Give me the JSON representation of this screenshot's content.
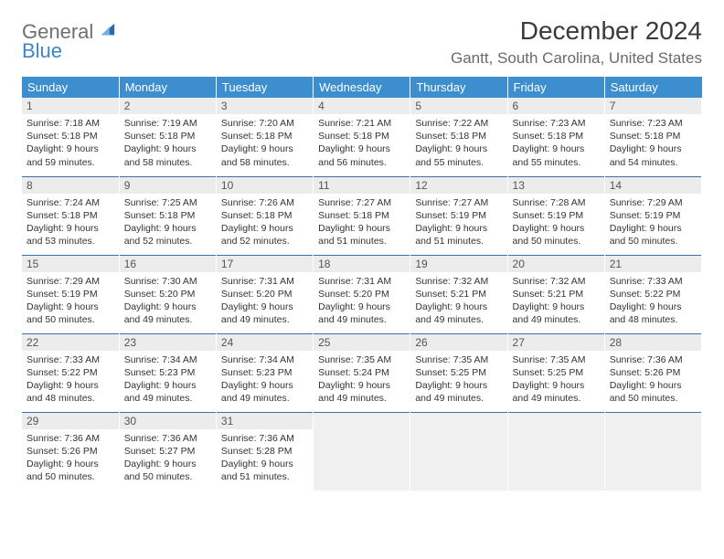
{
  "logo": {
    "word1": "General",
    "word2": "Blue"
  },
  "header": {
    "month_title": "December 2024",
    "location": "Gantt, South Carolina, United States"
  },
  "weekdays": [
    "Sunday",
    "Monday",
    "Tuesday",
    "Wednesday",
    "Thursday",
    "Friday",
    "Saturday"
  ],
  "colors": {
    "header_bg": "#3d8ecf",
    "header_text": "#ffffff",
    "daynum_bg": "#ececec",
    "row_border": "#3d72a7",
    "empty_bg": "#f0f0f0",
    "title_color": "#3a3a3a",
    "location_color": "#6a6a6a",
    "logo_gray": "#6f6f6f",
    "logo_blue": "#3a86c7"
  },
  "days": [
    {
      "n": "1",
      "sunrise": "Sunrise: 7:18 AM",
      "sunset": "Sunset: 5:18 PM",
      "day": "Daylight: 9 hours and 59 minutes."
    },
    {
      "n": "2",
      "sunrise": "Sunrise: 7:19 AM",
      "sunset": "Sunset: 5:18 PM",
      "day": "Daylight: 9 hours and 58 minutes."
    },
    {
      "n": "3",
      "sunrise": "Sunrise: 7:20 AM",
      "sunset": "Sunset: 5:18 PM",
      "day": "Daylight: 9 hours and 58 minutes."
    },
    {
      "n": "4",
      "sunrise": "Sunrise: 7:21 AM",
      "sunset": "Sunset: 5:18 PM",
      "day": "Daylight: 9 hours and 56 minutes."
    },
    {
      "n": "5",
      "sunrise": "Sunrise: 7:22 AM",
      "sunset": "Sunset: 5:18 PM",
      "day": "Daylight: 9 hours and 55 minutes."
    },
    {
      "n": "6",
      "sunrise": "Sunrise: 7:23 AM",
      "sunset": "Sunset: 5:18 PM",
      "day": "Daylight: 9 hours and 55 minutes."
    },
    {
      "n": "7",
      "sunrise": "Sunrise: 7:23 AM",
      "sunset": "Sunset: 5:18 PM",
      "day": "Daylight: 9 hours and 54 minutes."
    },
    {
      "n": "8",
      "sunrise": "Sunrise: 7:24 AM",
      "sunset": "Sunset: 5:18 PM",
      "day": "Daylight: 9 hours and 53 minutes."
    },
    {
      "n": "9",
      "sunrise": "Sunrise: 7:25 AM",
      "sunset": "Sunset: 5:18 PM",
      "day": "Daylight: 9 hours and 52 minutes."
    },
    {
      "n": "10",
      "sunrise": "Sunrise: 7:26 AM",
      "sunset": "Sunset: 5:18 PM",
      "day": "Daylight: 9 hours and 52 minutes."
    },
    {
      "n": "11",
      "sunrise": "Sunrise: 7:27 AM",
      "sunset": "Sunset: 5:18 PM",
      "day": "Daylight: 9 hours and 51 minutes."
    },
    {
      "n": "12",
      "sunrise": "Sunrise: 7:27 AM",
      "sunset": "Sunset: 5:19 PM",
      "day": "Daylight: 9 hours and 51 minutes."
    },
    {
      "n": "13",
      "sunrise": "Sunrise: 7:28 AM",
      "sunset": "Sunset: 5:19 PM",
      "day": "Daylight: 9 hours and 50 minutes."
    },
    {
      "n": "14",
      "sunrise": "Sunrise: 7:29 AM",
      "sunset": "Sunset: 5:19 PM",
      "day": "Daylight: 9 hours and 50 minutes."
    },
    {
      "n": "15",
      "sunrise": "Sunrise: 7:29 AM",
      "sunset": "Sunset: 5:19 PM",
      "day": "Daylight: 9 hours and 50 minutes."
    },
    {
      "n": "16",
      "sunrise": "Sunrise: 7:30 AM",
      "sunset": "Sunset: 5:20 PM",
      "day": "Daylight: 9 hours and 49 minutes."
    },
    {
      "n": "17",
      "sunrise": "Sunrise: 7:31 AM",
      "sunset": "Sunset: 5:20 PM",
      "day": "Daylight: 9 hours and 49 minutes."
    },
    {
      "n": "18",
      "sunrise": "Sunrise: 7:31 AM",
      "sunset": "Sunset: 5:20 PM",
      "day": "Daylight: 9 hours and 49 minutes."
    },
    {
      "n": "19",
      "sunrise": "Sunrise: 7:32 AM",
      "sunset": "Sunset: 5:21 PM",
      "day": "Daylight: 9 hours and 49 minutes."
    },
    {
      "n": "20",
      "sunrise": "Sunrise: 7:32 AM",
      "sunset": "Sunset: 5:21 PM",
      "day": "Daylight: 9 hours and 49 minutes."
    },
    {
      "n": "21",
      "sunrise": "Sunrise: 7:33 AM",
      "sunset": "Sunset: 5:22 PM",
      "day": "Daylight: 9 hours and 48 minutes."
    },
    {
      "n": "22",
      "sunrise": "Sunrise: 7:33 AM",
      "sunset": "Sunset: 5:22 PM",
      "day": "Daylight: 9 hours and 48 minutes."
    },
    {
      "n": "23",
      "sunrise": "Sunrise: 7:34 AM",
      "sunset": "Sunset: 5:23 PM",
      "day": "Daylight: 9 hours and 49 minutes."
    },
    {
      "n": "24",
      "sunrise": "Sunrise: 7:34 AM",
      "sunset": "Sunset: 5:23 PM",
      "day": "Daylight: 9 hours and 49 minutes."
    },
    {
      "n": "25",
      "sunrise": "Sunrise: 7:35 AM",
      "sunset": "Sunset: 5:24 PM",
      "day": "Daylight: 9 hours and 49 minutes."
    },
    {
      "n": "26",
      "sunrise": "Sunrise: 7:35 AM",
      "sunset": "Sunset: 5:25 PM",
      "day": "Daylight: 9 hours and 49 minutes."
    },
    {
      "n": "27",
      "sunrise": "Sunrise: 7:35 AM",
      "sunset": "Sunset: 5:25 PM",
      "day": "Daylight: 9 hours and 49 minutes."
    },
    {
      "n": "28",
      "sunrise": "Sunrise: 7:36 AM",
      "sunset": "Sunset: 5:26 PM",
      "day": "Daylight: 9 hours and 50 minutes."
    },
    {
      "n": "29",
      "sunrise": "Sunrise: 7:36 AM",
      "sunset": "Sunset: 5:26 PM",
      "day": "Daylight: 9 hours and 50 minutes."
    },
    {
      "n": "30",
      "sunrise": "Sunrise: 7:36 AM",
      "sunset": "Sunset: 5:27 PM",
      "day": "Daylight: 9 hours and 50 minutes."
    },
    {
      "n": "31",
      "sunrise": "Sunrise: 7:36 AM",
      "sunset": "Sunset: 5:28 PM",
      "day": "Daylight: 9 hours and 51 minutes."
    }
  ]
}
